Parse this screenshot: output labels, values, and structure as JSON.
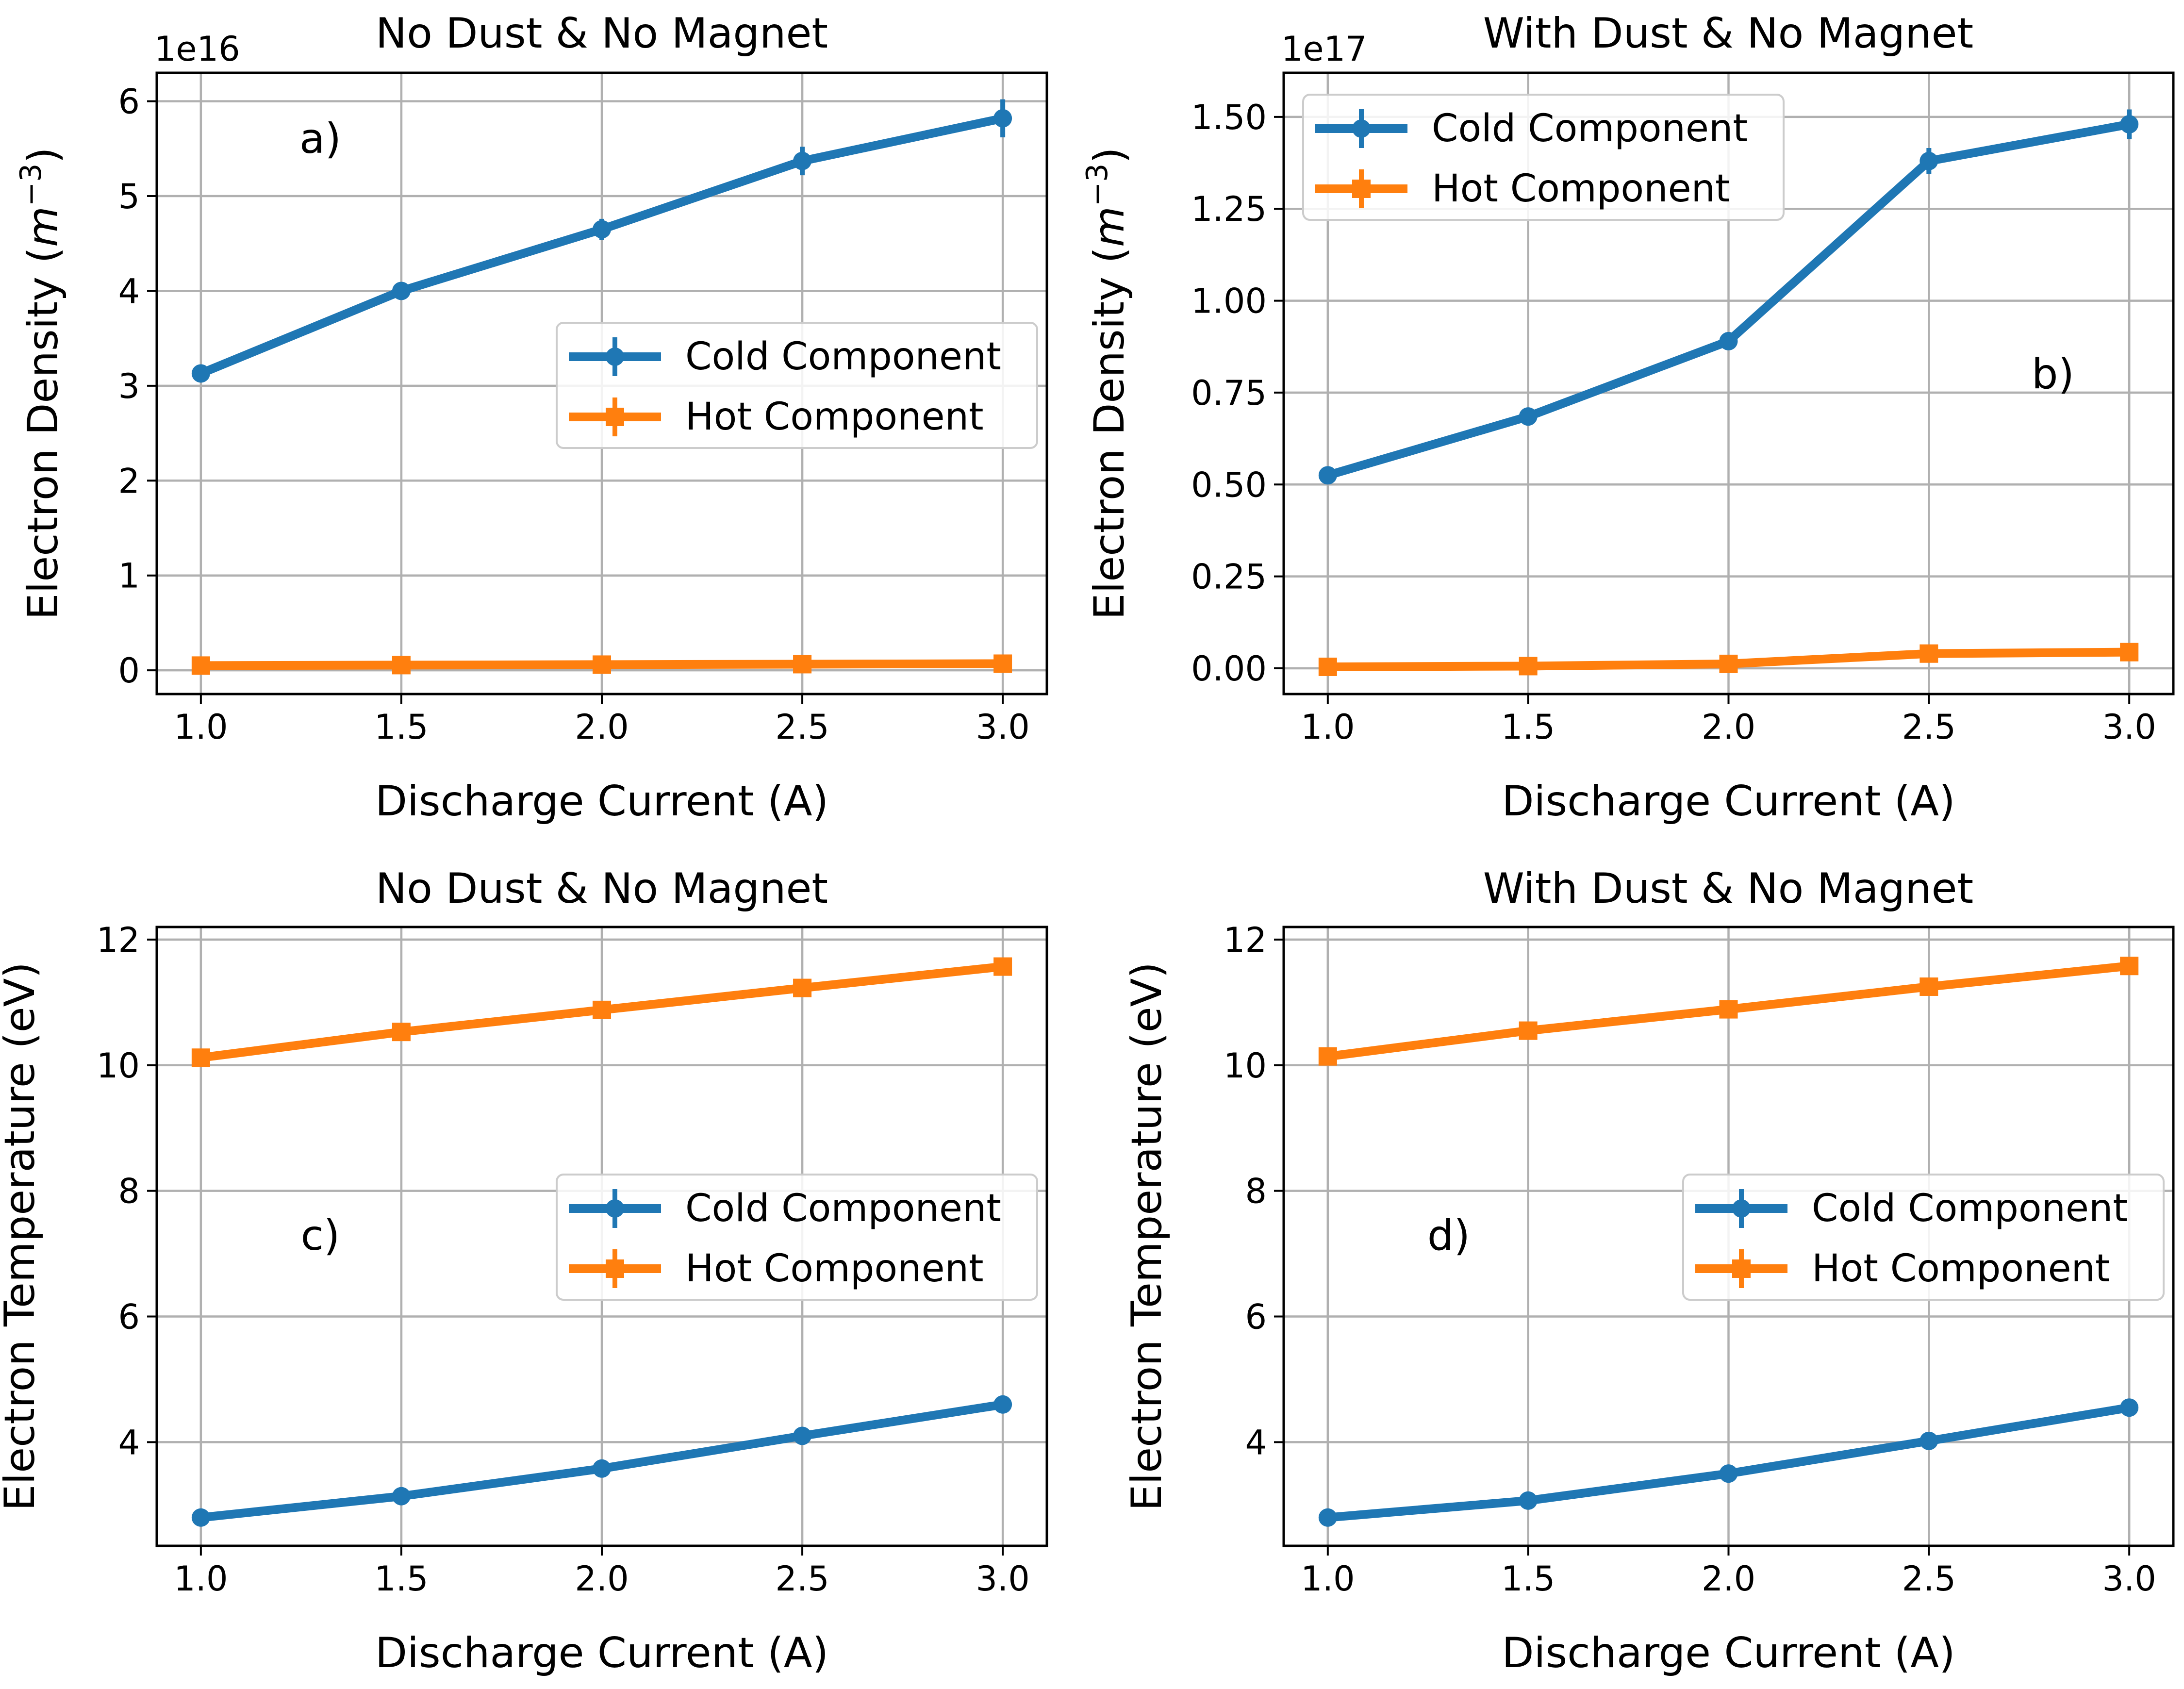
{
  "figure": {
    "colors": {
      "cold": "#1f77b4",
      "hot": "#ff7f0e",
      "grid": "#b0b0b0"
    }
  },
  "chart_data": [
    {
      "type": "line",
      "panel_label": "a)",
      "title": "No Dust & No Magnet",
      "xlabel": "Discharge Current (A)",
      "ylabel_base": "Electron Density (",
      "ylabel_math": "m",
      "ylabel_exp": "−3",
      "ylabel_close": ")",
      "offset_text": "1e16",
      "x": [
        1.0,
        1.5,
        2.0,
        2.5,
        3.0
      ],
      "xlim": [
        0.89,
        3.11
      ],
      "ylim": [
        -0.25,
        6.3
      ],
      "xticks": [
        1.0,
        1.5,
        2.0,
        2.5,
        3.0
      ],
      "xtick_labels": [
        "1.0",
        "1.5",
        "2.0",
        "2.5",
        "3.0"
      ],
      "yticks": [
        0,
        1,
        2,
        3,
        4,
        5,
        6
      ],
      "ytick_labels": [
        "0",
        "1",
        "2",
        "3",
        "4",
        "5",
        "6"
      ],
      "legend": {
        "position": "center-right"
      },
      "series": [
        {
          "name": "Cold Component",
          "color": "#1f77b4",
          "marker": "circle",
          "values": [
            3.13,
            4.0,
            4.65,
            5.37,
            5.82
          ],
          "errors": [
            0.06,
            0.07,
            0.09,
            0.13,
            0.18
          ]
        },
        {
          "name": "Hot Component",
          "color": "#ff7f0e",
          "marker": "square",
          "values": [
            0.05,
            0.055,
            0.06,
            0.065,
            0.07
          ],
          "errors": [
            0.01,
            0.01,
            0.01,
            0.01,
            0.01
          ]
        }
      ]
    },
    {
      "type": "line",
      "panel_label": "b)",
      "title": "With Dust & No Magnet",
      "xlabel": "Discharge Current (A)",
      "ylabel_base": "Electron Density (",
      "ylabel_math": "m",
      "ylabel_exp": "−3",
      "ylabel_close": ")",
      "offset_text": "1e17",
      "x": [
        1.0,
        1.5,
        2.0,
        2.5,
        3.0
      ],
      "xlim": [
        0.89,
        3.11
      ],
      "ylim": [
        -0.07,
        1.62
      ],
      "xticks": [
        1.0,
        1.5,
        2.0,
        2.5,
        3.0
      ],
      "xtick_labels": [
        "1.0",
        "1.5",
        "2.0",
        "2.5",
        "3.0"
      ],
      "yticks": [
        0,
        0.25,
        0.5,
        0.75,
        1.0,
        1.25,
        1.5
      ],
      "ytick_labels": [
        "0.00",
        "0.25",
        "0.50",
        "0.75",
        "1.00",
        "1.25",
        "1.50"
      ],
      "legend": {
        "position": "top-left"
      },
      "series": [
        {
          "name": "Cold Component",
          "color": "#1f77b4",
          "marker": "circle",
          "values": [
            0.525,
            0.685,
            0.89,
            1.38,
            1.48
          ],
          "errors": [
            0.01,
            0.012,
            0.015,
            0.03,
            0.035
          ]
        },
        {
          "name": "Hot Component",
          "color": "#ff7f0e",
          "marker": "square",
          "values": [
            0.004,
            0.006,
            0.012,
            0.04,
            0.044
          ],
          "errors": [
            0.002,
            0.002,
            0.003,
            0.006,
            0.006
          ]
        }
      ]
    },
    {
      "type": "line",
      "panel_label": "c)",
      "title": "No Dust & No Magnet",
      "xlabel": "Discharge Current (A)",
      "ylabel_base": "Electron Temperature (eV)",
      "ylabel_math": "",
      "ylabel_exp": "",
      "ylabel_close": "",
      "offset_text": "",
      "x": [
        1.0,
        1.5,
        2.0,
        2.5,
        3.0
      ],
      "xlim": [
        0.89,
        3.11
      ],
      "ylim": [
        2.35,
        12.2
      ],
      "xticks": [
        1.0,
        1.5,
        2.0,
        2.5,
        3.0
      ],
      "xtick_labels": [
        "1.0",
        "1.5",
        "2.0",
        "2.5",
        "3.0"
      ],
      "yticks": [
        4,
        6,
        8,
        10,
        12
      ],
      "ytick_labels": [
        "4",
        "6",
        "8",
        "10",
        "12"
      ],
      "legend": {
        "position": "center-right"
      },
      "series": [
        {
          "name": "Cold Component",
          "color": "#1f77b4",
          "marker": "circle",
          "values": [
            2.8,
            3.14,
            3.58,
            4.1,
            4.6
          ],
          "errors": [
            0.05,
            0.05,
            0.05,
            0.05,
            0.05
          ]
        },
        {
          "name": "Hot Component",
          "color": "#ff7f0e",
          "marker": "square",
          "values": [
            10.12,
            10.53,
            10.88,
            11.23,
            11.57
          ],
          "errors": [
            0.07,
            0.07,
            0.07,
            0.07,
            0.07
          ]
        }
      ]
    },
    {
      "type": "line",
      "panel_label": "d)",
      "title": "With Dust & No Magnet",
      "xlabel": "Discharge Current (A)",
      "ylabel_base": "Electron Temperature (eV)",
      "ylabel_math": "",
      "ylabel_exp": "",
      "ylabel_close": "",
      "offset_text": "",
      "x": [
        1.0,
        1.5,
        2.0,
        2.5,
        3.0
      ],
      "xlim": [
        0.89,
        3.11
      ],
      "ylim": [
        2.35,
        12.2
      ],
      "xticks": [
        1.0,
        1.5,
        2.0,
        2.5,
        3.0
      ],
      "xtick_labels": [
        "1.0",
        "1.5",
        "2.0",
        "2.5",
        "3.0"
      ],
      "yticks": [
        4,
        6,
        8,
        10,
        12
      ],
      "ytick_labels": [
        "4",
        "6",
        "8",
        "10",
        "12"
      ],
      "legend": {
        "position": "center-right"
      },
      "series": [
        {
          "name": "Cold Component",
          "color": "#1f77b4",
          "marker": "circle",
          "values": [
            2.8,
            3.07,
            3.5,
            4.02,
            4.55
          ],
          "errors": [
            0.05,
            0.05,
            0.05,
            0.05,
            0.05
          ]
        },
        {
          "name": "Hot Component",
          "color": "#ff7f0e",
          "marker": "square",
          "values": [
            10.14,
            10.55,
            10.89,
            11.25,
            11.58
          ],
          "errors": [
            0.07,
            0.07,
            0.07,
            0.07,
            0.07
          ]
        }
      ]
    }
  ]
}
